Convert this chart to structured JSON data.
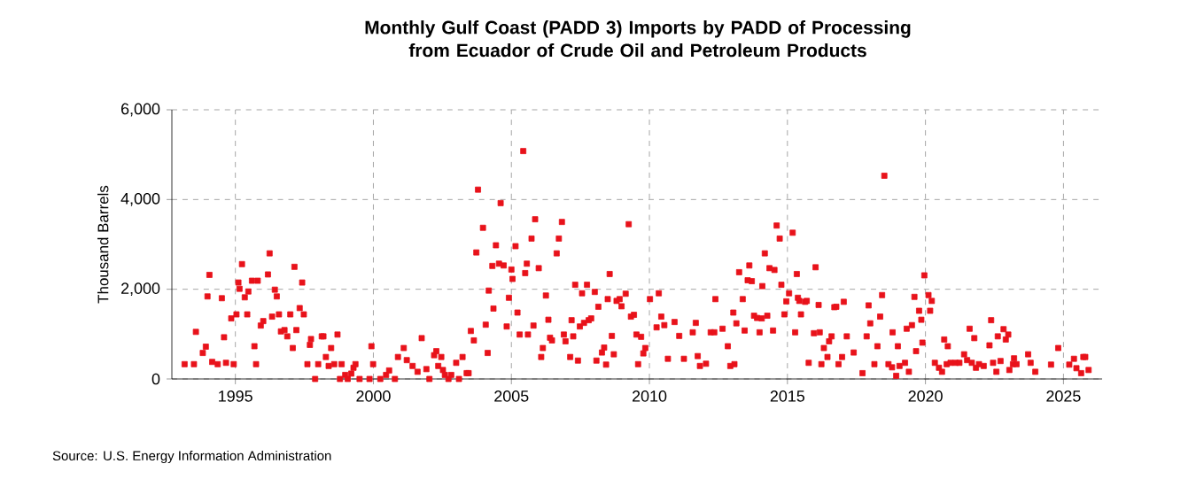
{
  "chart_data": {
    "type": "scatter",
    "title": "Monthly Gulf Coast (PADD 3) Imports by PADD of Processing from Ecuador of Crude Oil and Petroleum Products",
    "ylabel": "Thousand Barrels",
    "annotations": [
      "Source: U.S. Energy Information Administration"
    ],
    "xlim": [
      1992.7,
      2026.4
    ],
    "xticks": [
      1995,
      2000,
      2005,
      2010,
      2015,
      2020,
      2025
    ],
    "ylim": [
      0,
      6000
    ],
    "yticks": [
      {
        "value": 0,
        "label": "0"
      },
      {
        "value": 2000,
        "label": "2,000"
      },
      {
        "value": 4000,
        "label": "4,000"
      },
      {
        "value": 6000,
        "label": "6,000"
      }
    ],
    "grid": true,
    "marker": "square",
    "color": "#e8121a",
    "x": [
      1993.16,
      1993.5,
      1993.57,
      1993.82,
      1993.93,
      1993.99,
      1994.06,
      1994.16,
      1994.36,
      1994.51,
      1994.59,
      1994.66,
      1994.85,
      1994.94,
      1995.04,
      1995.11,
      1995.15,
      1995.24,
      1995.34,
      1995.43,
      1995.47,
      1995.6,
      1995.69,
      1995.75,
      1995.81,
      1995.92,
      1996.01,
      1996.18,
      1996.24,
      1996.33,
      1996.43,
      1996.5,
      1996.58,
      1996.65,
      1996.78,
      1996.88,
      1996.99,
      1997.08,
      1997.14,
      1997.21,
      1997.33,
      1997.42,
      1997.48,
      1997.61,
      1997.7,
      1997.74,
      1997.89,
      1998.0,
      1998.13,
      1998.19,
      1998.28,
      1998.38,
      1998.47,
      1998.58,
      1998.7,
      1998.79,
      1998.85,
      1998.98,
      1999.07,
      1999.2,
      1999.28,
      1999.35,
      1999.5,
      1999.86,
      1999.93,
      1999.99,
      2000.25,
      2000.46,
      2000.57,
      2000.78,
      2000.89,
      2001.1,
      2001.21,
      2001.42,
      2001.6,
      2001.75,
      2001.92,
      2002.03,
      2002.2,
      2002.28,
      2002.35,
      2002.46,
      2002.52,
      2002.59,
      2002.72,
      2002.82,
      2003.0,
      2003.1,
      2003.23,
      2003.38,
      2003.45,
      2003.53,
      2003.64,
      2003.73,
      2003.79,
      2003.97,
      2004.07,
      2004.14,
      2004.18,
      2004.31,
      2004.35,
      2004.44,
      2004.55,
      2004.61,
      2004.72,
      2004.83,
      2004.91,
      2005.0,
      2005.04,
      2005.15,
      2005.22,
      2005.3,
      2005.43,
      2005.5,
      2005.56,
      2005.6,
      2005.73,
      2005.8,
      2005.86,
      2005.99,
      2006.08,
      2006.14,
      2006.25,
      2006.34,
      2006.4,
      2006.47,
      2006.64,
      2006.72,
      2006.83,
      2006.9,
      2006.96,
      2007.13,
      2007.18,
      2007.24,
      2007.31,
      2007.41,
      2007.48,
      2007.56,
      2007.63,
      2007.74,
      2007.8,
      2007.89,
      2008.02,
      2008.08,
      2008.15,
      2008.28,
      2008.36,
      2008.43,
      2008.49,
      2008.56,
      2008.64,
      2008.71,
      2008.81,
      2008.92,
      2008.99,
      2009.14,
      2009.25,
      2009.33,
      2009.44,
      2009.53,
      2009.59,
      2009.7,
      2009.78,
      2009.85,
      2010.02,
      2010.26,
      2010.34,
      2010.43,
      2010.54,
      2010.67,
      2010.91,
      2011.08,
      2011.25,
      2011.57,
      2011.68,
      2011.75,
      2011.83,
      2012.05,
      2012.22,
      2012.35,
      2012.39,
      2012.65,
      2012.84,
      2012.93,
      2013.04,
      2013.08,
      2013.15,
      2013.25,
      2013.38,
      2013.45,
      2013.56,
      2013.62,
      2013.71,
      2013.79,
      2013.9,
      2013.99,
      2014.07,
      2014.09,
      2014.18,
      2014.27,
      2014.35,
      2014.48,
      2014.53,
      2014.61,
      2014.72,
      2014.78,
      2014.89,
      2014.96,
      2015.06,
      2015.19,
      2015.28,
      2015.34,
      2015.38,
      2015.43,
      2015.49,
      2015.64,
      2015.7,
      2015.77,
      2015.96,
      2016.02,
      2016.13,
      2016.17,
      2016.23,
      2016.32,
      2016.45,
      2016.51,
      2016.6,
      2016.7,
      2016.77,
      2016.85,
      2016.98,
      2017.04,
      2017.15,
      2017.4,
      2017.72,
      2017.87,
      2017.94,
      2018.0,
      2018.15,
      2018.26,
      2018.36,
      2018.43,
      2018.51,
      2018.66,
      2018.79,
      2018.81,
      2018.94,
      2019.0,
      2019.06,
      2019.26,
      2019.32,
      2019.4,
      2019.51,
      2019.6,
      2019.66,
      2019.77,
      2019.85,
      2019.89,
      2019.96,
      2020.11,
      2020.17,
      2020.23,
      2020.34,
      2020.49,
      2020.6,
      2020.68,
      2020.77,
      2020.81,
      2020.91,
      2021.09,
      2021.23,
      2021.4,
      2021.51,
      2021.6,
      2021.68,
      2021.77,
      2021.83,
      2021.94,
      2022.11,
      2022.32,
      2022.38,
      2022.45,
      2022.57,
      2022.62,
      2022.72,
      2022.83,
      2022.91,
      2023.0,
      2023.04,
      2023.17,
      2023.21,
      2023.3,
      2023.72,
      2023.81,
      2023.98,
      2024.55,
      2024.81,
      2025.21,
      2025.38,
      2025.47,
      2025.64,
      2025.72,
      2025.79,
      2025.91
    ],
    "values": [
      330,
      330,
      1050,
      580,
      720,
      1840,
      2320,
      380,
      330,
      1800,
      930,
      360,
      1350,
      330,
      1440,
      2150,
      2010,
      2560,
      1820,
      1440,
      1950,
      2190,
      730,
      330,
      2190,
      1190,
      1290,
      2330,
      2800,
      1390,
      1990,
      1840,
      1440,
      1060,
      1090,
      950,
      1440,
      690,
      2500,
      1090,
      1580,
      2150,
      1440,
      330,
      760,
      890,
      0,
      330,
      950,
      950,
      490,
      290,
      690,
      330,
      990,
      0,
      330,
      90,
      0,
      120,
      250,
      330,
      0,
      0,
      730,
      330,
      0,
      90,
      190,
      0,
      490,
      690,
      420,
      290,
      160,
      910,
      220,
      0,
      530,
      620,
      290,
      490,
      200,
      90,
      0,
      90,
      360,
      0,
      490,
      130,
      130,
      1070,
      860,
      2820,
      4220,
      3370,
      1210,
      580,
      1970,
      2520,
      1570,
      2980,
      2570,
      3920,
      2530,
      1170,
      1810,
      2440,
      2230,
      2960,
      1480,
      990,
      5080,
      2360,
      2570,
      990,
      3130,
      1190,
      3560,
      2470,
      490,
      690,
      1860,
      1320,
      920,
      860,
      2800,
      3130,
      3500,
      990,
      840,
      490,
      1310,
      950,
      2100,
      410,
      1170,
      1910,
      1250,
      2100,
      1310,
      1350,
      1940,
      410,
      1610,
      590,
      700,
      320,
      1780,
      2340,
      960,
      550,
      1740,
      1780,
      1620,
      1900,
      3450,
      1390,
      1430,
      990,
      330,
      940,
      570,
      690,
      1780,
      1150,
      1910,
      1390,
      1200,
      450,
      1270,
      960,
      450,
      1040,
      1250,
      510,
      290,
      340,
      1040,
      1040,
      1780,
      1120,
      730,
      290,
      1480,
      330,
      1240,
      2380,
      1780,
      1080,
      2200,
      2530,
      2180,
      1410,
      1360,
      1040,
      1350,
      2070,
      2800,
      1410,
      2470,
      1080,
      2430,
      3420,
      3130,
      2100,
      1440,
      1730,
      1910,
      3260,
      1040,
      2340,
      1810,
      1740,
      1440,
      1720,
      1740,
      360,
      1020,
      2490,
      1650,
      1040,
      330,
      690,
      490,
      840,
      950,
      1600,
      1610,
      330,
      490,
      1720,
      950,
      590,
      130,
      950,
      1640,
      1240,
      330,
      730,
      1390,
      1870,
      4530,
      330,
      260,
      1040,
      70,
      730,
      290,
      360,
      1120,
      160,
      1200,
      1830,
      620,
      1520,
      1320,
      810,
      2310,
      1870,
      1520,
      1740,
      360,
      250,
      160,
      880,
      330,
      730,
      360,
      360,
      360,
      550,
      420,
      1120,
      360,
      910,
      250,
      330,
      290,
      750,
      1310,
      360,
      160,
      950,
      400,
      1110,
      880,
      990,
      200,
      330,
      460,
      330,
      550,
      360,
      160,
      320,
      690,
      320,
      450,
      240,
      130,
      490,
      490,
      200
    ]
  }
}
